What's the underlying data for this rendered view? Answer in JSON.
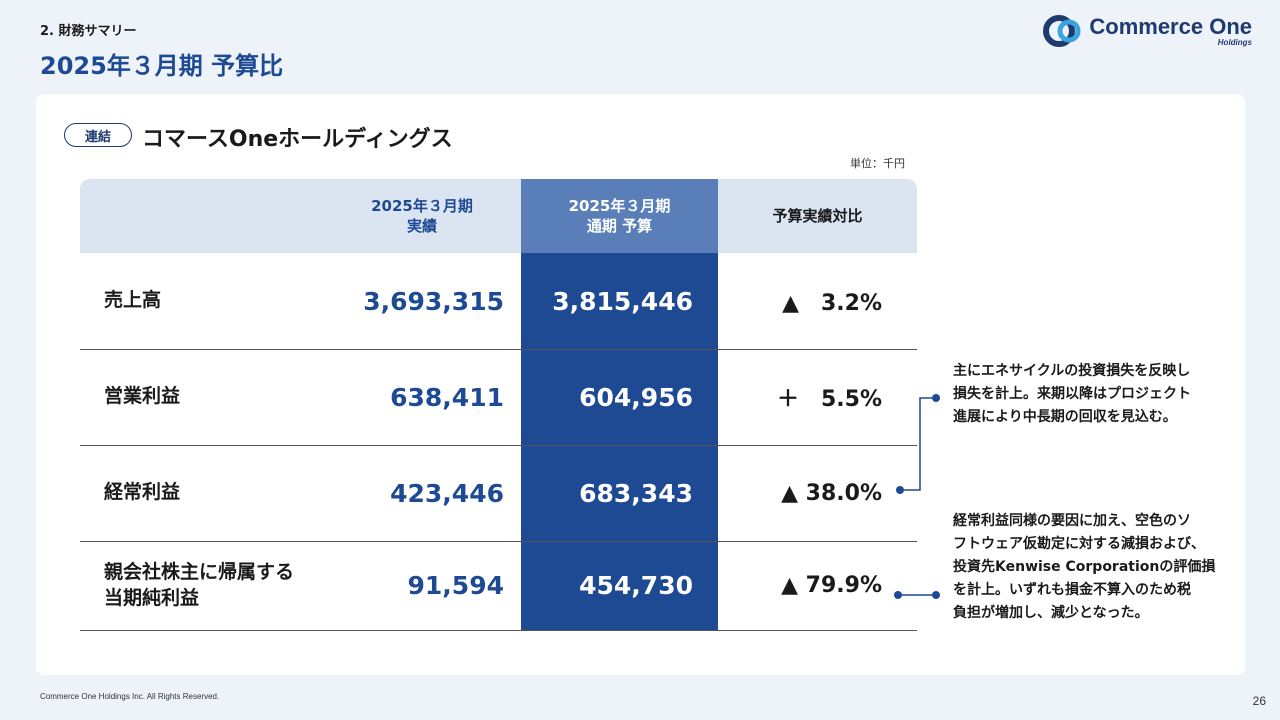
{
  "header": {
    "section": "2. 財務サマリー",
    "title": "2025年３月期 予算比"
  },
  "logo": {
    "name": "Commerce One",
    "sub": "Holdings"
  },
  "card": {
    "badge": "連結",
    "company": "コマースOneホールディングス",
    "unit": "単位：千円"
  },
  "table": {
    "columns": {
      "actual_line1": "2025年３月期",
      "actual_line2": "実績",
      "budget_line1": "2025年３月期",
      "budget_line2": "通期 予算",
      "ratio": "予算実績対比"
    },
    "rows": [
      {
        "label": "売上高",
        "actual": "3,693,315",
        "budget": "3,815,446",
        "ratio": "▲　3.2%"
      },
      {
        "label": "営業利益",
        "actual": "638,411",
        "budget": "604,956",
        "ratio": "＋　5.5%"
      },
      {
        "label": "経常利益",
        "actual": "423,446",
        "budget": "683,343",
        "ratio": "▲ 38.0%"
      },
      {
        "label_line1": "親会社株主に帰属する",
        "label_line2": "当期純利益",
        "actual": "91,594",
        "budget": "454,730",
        "ratio": "▲ 79.9%"
      }
    ]
  },
  "notes": {
    "note1": [
      "主にエネサイクルの投資損失を反映し",
      "損失を計上。来期以降はプロジェクト",
      "進展により中長期の回収を見込む。"
    ],
    "note2": [
      "経常利益同様の要因に加え、空色のソ",
      "フトウェア仮勘定に対する減損および、",
      "投資先Kenwise Corporationの評価損",
      "を計上。いずれも損金不算入のため税",
      "負担が増加し、減少となった。"
    ]
  },
  "colors": {
    "primary": "#1e4a94",
    "header_bg": "#dbe5f1",
    "budget_header": "#5a7fb8",
    "page_bg": "#eef3f9"
  },
  "footer": {
    "copyright": "Commerce One Holdings Inc. All Rights Reserved.",
    "page": "26"
  }
}
